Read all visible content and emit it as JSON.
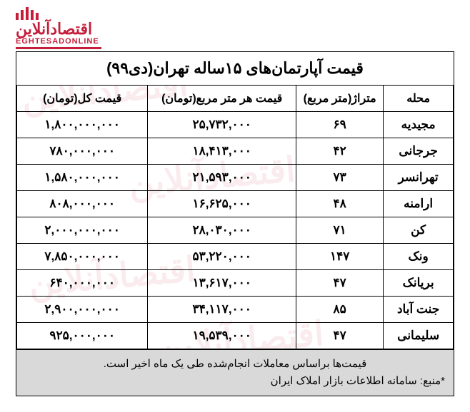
{
  "logo": {
    "fa": "اقتصادآنلاین",
    "en": "EGHTESADONLINE"
  },
  "watermark_text": "اقتصادآنلاین",
  "title": "قیمت آپارتمان‌های ۱۵ساله تهران(دی۹۹)",
  "columns": {
    "mahale": "محله",
    "metraj": "متراژ(متر مربع)",
    "ppsm": "قیمت هر متر مربع(تومان)",
    "total": "قیمت کل(تومان)"
  },
  "rows": [
    {
      "mahale": "مجیدیه",
      "metraj": "۶۹",
      "ppsm": "۲۵,۷۳۲,۰۰۰",
      "total": "۱,۸۰۰,۰۰۰,۰۰۰"
    },
    {
      "mahale": "جرجانی",
      "metraj": "۴۲",
      "ppsm": "۱۸,۴۱۳,۰۰۰",
      "total": "۷۸۰,۰۰۰,۰۰۰"
    },
    {
      "mahale": "تهرانسر",
      "metraj": "۷۳",
      "ppsm": "۲۱,۵۹۳,۰۰۰",
      "total": "۱,۵۸۰,۰۰۰,۰۰۰"
    },
    {
      "mahale": "ارامنه",
      "metraj": "۴۸",
      "ppsm": "۱۶,۶۲۵,۰۰۰",
      "total": "۸۰۸,۰۰۰,۰۰۰"
    },
    {
      "mahale": "کن",
      "metraj": "۷۱",
      "ppsm": "۲۸,۰۳۰,۰۰۰",
      "total": "۲,۰۰۰,۰۰۰,۰۰۰"
    },
    {
      "mahale": "ونک",
      "metraj": "۱۴۷",
      "ppsm": "۵۳,۲۲۰,۰۰۰",
      "total": "۷,۸۵۰,۰۰۰,۰۰۰"
    },
    {
      "mahale": "بریانک",
      "metraj": "۴۷",
      "ppsm": "۱۳,۶۱۷,۰۰۰",
      "total": "۶۴۰,۰۰۰,۰۰۰"
    },
    {
      "mahale": "جنت آباد",
      "metraj": "۸۵",
      "ppsm": "۳۴,۱۱۷,۰۰۰",
      "total": "۲,۹۰۰,۰۰۰,۰۰۰"
    },
    {
      "mahale": "سلیمانی",
      "metraj": "۴۷",
      "ppsm": "۱۹,۵۳۹,۰۰۰",
      "total": "۹۲۵,۰۰۰,۰۰۰"
    }
  ],
  "footer": {
    "note": "قیمت‌ها براساس معاملات انجام‌شده طی یک ماه اخیر است.",
    "source": "*منبع: سامانه اطلاعات بازار املاک ایران"
  },
  "style": {
    "accent": "#c41e3a",
    "border": "#000000",
    "footer_bg": "#d9d9d9",
    "title_fontsize": 22,
    "cell_fontsize": 17
  }
}
